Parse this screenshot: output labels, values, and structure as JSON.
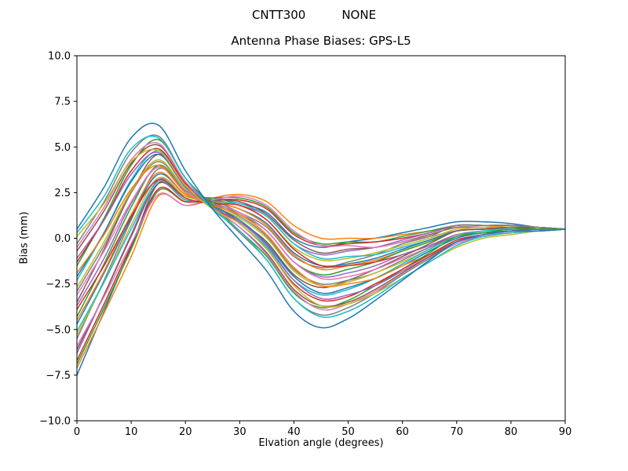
{
  "suptitle": {
    "left": "CNTT300",
    "right": "NONE"
  },
  "chart_data": {
    "type": "line",
    "title": "Antenna Phase Biases: GPS-L5",
    "xlabel": "Elvation angle (degrees)",
    "ylabel": "Bias (mm)",
    "xlim": [
      0,
      90
    ],
    "ylim": [
      -10,
      10
    ],
    "grid": false,
    "legend": "none",
    "x_ticks": [
      0,
      10,
      20,
      30,
      40,
      50,
      60,
      70,
      80,
      90
    ],
    "x_tick_labels": [
      "0",
      "10",
      "20",
      "30",
      "40",
      "50",
      "60",
      "70",
      "80",
      "90"
    ],
    "y_ticks": [
      10.0,
      7.5,
      5.0,
      2.5,
      0.0,
      -2.5,
      -5.0,
      -7.5,
      -10.0
    ],
    "y_tick_labels": [
      "10.0",
      "7.5",
      "5.0",
      "2.5",
      "0.0",
      "−2.5",
      "−5.0",
      "−7.5",
      "−10.0"
    ],
    "line_colors": [
      "#1f77b4",
      "#ff7f0e",
      "#2ca02c",
      "#d62728",
      "#9467bd",
      "#8c564b",
      "#e377c2",
      "#7f7f7f",
      "#bcbd22",
      "#17becf"
    ],
    "x": [
      0,
      5,
      10,
      15,
      20,
      25,
      30,
      35,
      40,
      45,
      50,
      55,
      60,
      65,
      70,
      75,
      80,
      85,
      90
    ],
    "series": [
      {
        "values": [
          -7.5,
          -4.0,
          -0.5,
          3.0,
          2.3,
          2.2,
          1.9,
          1.4,
          0.0,
          -0.5,
          -0.2,
          0.0,
          0.3,
          0.6,
          0.9,
          0.9,
          0.8,
          0.6,
          0.5
        ]
      },
      {
        "values": [
          -7.1,
          -4.1,
          -1.0,
          2.3,
          1.8,
          2.2,
          2.4,
          2.0,
          0.7,
          0.0,
          0.0,
          0.0,
          0.2,
          0.4,
          0.7,
          0.7,
          0.6,
          0.6,
          0.5
        ]
      },
      {
        "values": [
          -6.9,
          -3.8,
          -0.6,
          2.6,
          2.0,
          2.2,
          2.2,
          1.7,
          0.3,
          -0.3,
          -0.2,
          -0.2,
          0.1,
          0.4,
          0.7,
          0.7,
          0.7,
          0.6,
          0.5
        ]
      },
      {
        "values": [
          -6.7,
          -3.6,
          -0.4,
          2.7,
          2.0,
          2.1,
          2.1,
          1.6,
          0.2,
          -0.4,
          -0.3,
          -0.2,
          0.0,
          0.3,
          0.7,
          0.7,
          0.7,
          0.6,
          0.5
        ]
      },
      {
        "values": [
          -6.3,
          -3.1,
          0.2,
          3.2,
          2.3,
          2.1,
          1.8,
          1.2,
          -0.3,
          -0.9,
          -0.7,
          -0.5,
          -0.1,
          0.3,
          0.7,
          0.7,
          0.7,
          0.6,
          0.5
        ]
      },
      {
        "values": [
          -6.1,
          -3.1,
          0.1,
          3.0,
          2.1,
          2.1,
          2.0,
          1.3,
          -0.1,
          -0.8,
          -0.6,
          -0.5,
          -0.2,
          0.2,
          0.6,
          0.6,
          0.6,
          0.6,
          0.5
        ]
      },
      {
        "values": [
          -5.9,
          -3.2,
          -0.3,
          2.4,
          1.8,
          2.1,
          2.3,
          1.8,
          0.4,
          -0.4,
          -0.4,
          -0.5,
          -0.2,
          0.1,
          0.4,
          0.5,
          0.5,
          0.5,
          0.5
        ]
      },
      {
        "values": [
          -5.5,
          -2.3,
          1.0,
          3.8,
          2.6,
          2.1,
          1.4,
          0.6,
          -1.0,
          -1.6,
          -1.3,
          -0.9,
          -0.3,
          0.1,
          0.7,
          0.7,
          0.7,
          0.6,
          0.5
        ]
      },
      {
        "values": [
          -5.3,
          -2.4,
          0.7,
          3.3,
          2.3,
          2.0,
          1.8,
          1.0,
          -0.5,
          -1.2,
          -1.1,
          -0.8,
          -0.4,
          0.0,
          0.5,
          0.6,
          0.6,
          0.5,
          0.5
        ]
      },
      {
        "values": [
          -5.1,
          -2.4,
          0.5,
          3.1,
          2.1,
          2.0,
          1.9,
          1.2,
          -0.3,
          -1.1,
          -1.0,
          -0.9,
          -0.5,
          -0.1,
          0.4,
          0.5,
          0.5,
          0.5,
          0.5
        ]
      },
      {
        "values": [
          -4.7,
          -1.9,
          1.1,
          3.5,
          2.4,
          2.0,
          1.6,
          0.8,
          -0.8,
          -1.5,
          -1.4,
          -1.1,
          -0.6,
          -0.1,
          0.4,
          0.5,
          0.6,
          0.5,
          0.5
        ]
      },
      {
        "values": [
          -4.5,
          -1.8,
          1.3,
          3.6,
          2.4,
          2.0,
          1.6,
          0.7,
          -0.9,
          -1.7,
          -1.5,
          -1.2,
          -0.7,
          -0.2,
          0.4,
          0.5,
          0.6,
          0.5,
          0.5
        ]
      },
      {
        "values": [
          -4.3,
          -1.4,
          1.7,
          4.0,
          2.6,
          2.0,
          1.3,
          0.4,
          -1.3,
          -2.0,
          -1.7,
          -1.3,
          -0.7,
          -0.2,
          0.4,
          0.5,
          0.6,
          0.5,
          0.5
        ]
      },
      {
        "values": [
          -3.9,
          -1.5,
          1.2,
          3.2,
          2.2,
          1.9,
          1.8,
          1.0,
          -0.6,
          -1.5,
          -1.5,
          -1.3,
          -0.9,
          -0.4,
          0.1,
          0.3,
          0.4,
          0.5,
          0.5
        ]
      },
      {
        "values": [
          -3.7,
          -1.1,
          1.9,
          3.9,
          2.6,
          1.9,
          1.4,
          0.4,
          -1.3,
          -2.1,
          -1.9,
          -1.5,
          -0.9,
          -0.4,
          0.2,
          0.4,
          0.5,
          0.5,
          0.5
        ]
      },
      {
        "values": [
          -3.5,
          -0.6,
          2.5,
          4.6,
          3.0,
          1.9,
          0.9,
          -0.2,
          -2.0,
          -2.7,
          -2.3,
          -1.7,
          -1.0,
          -0.3,
          0.4,
          0.5,
          0.6,
          0.5,
          0.5
        ]
      },
      {
        "values": [
          -3.1,
          -0.7,
          2.0,
          3.9,
          2.5,
          1.9,
          1.4,
          0.4,
          -1.3,
          -2.2,
          -2.1,
          -1.7,
          -1.1,
          -0.5,
          0.1,
          0.3,
          0.4,
          0.5,
          0.5
        ]
      },
      {
        "values": [
          -2.9,
          -0.4,
          2.5,
          4.2,
          2.7,
          1.9,
          1.2,
          0.1,
          -1.7,
          -2.5,
          -2.3,
          -1.9,
          -1.2,
          -0.5,
          0.1,
          0.3,
          0.5,
          0.5,
          0.5
        ]
      },
      {
        "values": [
          -2.7,
          -0.2,
          2.6,
          4.3,
          2.7,
          1.8,
          1.1,
          0.0,
          -1.8,
          -2.6,
          -2.4,
          -1.9,
          -1.3,
          -0.6,
          0.1,
          0.3,
          0.5,
          0.5,
          0.5
        ]
      },
      {
        "values": [
          -2.3,
          0.3,
          3.2,
          4.8,
          3.0,
          1.8,
          0.8,
          -0.5,
          -2.3,
          -3.1,
          -2.8,
          -2.2,
          -1.4,
          -0.6,
          0.1,
          0.4,
          0.5,
          0.5,
          0.5
        ]
      },
      {
        "values": [
          -2.1,
          0.3,
          3.1,
          4.6,
          2.8,
          1.8,
          1.0,
          -0.3,
          -2.1,
          -3.0,
          -2.7,
          -2.2,
          -1.5,
          -0.7,
          0.0,
          0.3,
          0.4,
          0.5,
          0.5
        ]
      },
      {
        "values": [
          -1.9,
          0.2,
          2.7,
          4.0,
          2.5,
          1.8,
          1.3,
          0.2,
          -1.6,
          -2.6,
          -2.5,
          -2.2,
          -1.5,
          -0.9,
          -0.2,
          0.1,
          0.3,
          0.4,
          0.5
        ]
      },
      {
        "values": [
          -1.5,
          1.1,
          4.0,
          5.4,
          3.3,
          1.8,
          0.4,
          -1.0,
          -3.0,
          -3.8,
          -3.4,
          -2.6,
          -1.7,
          -0.8,
          0.1,
          0.3,
          0.5,
          0.5,
          0.5
        ]
      },
      {
        "values": [
          -1.3,
          1.0,
          3.7,
          4.9,
          3.0,
          1.7,
          0.8,
          -0.6,
          -2.5,
          -3.4,
          -3.2,
          -2.5,
          -1.7,
          -0.9,
          -0.1,
          0.2,
          0.4,
          0.4,
          0.5
        ]
      },
      {
        "values": [
          -1.1,
          1.0,
          3.5,
          4.7,
          2.8,
          1.7,
          0.9,
          -0.4,
          -2.3,
          -3.3,
          -3.1,
          -2.6,
          -1.8,
          -1.0,
          -0.2,
          0.1,
          0.3,
          0.4,
          0.5
        ]
      },
      {
        "values": [
          -0.7,
          1.5,
          4.1,
          5.1,
          3.1,
          1.7,
          0.6,
          -0.8,
          -2.8,
          -3.7,
          -3.5,
          -2.8,
          -1.9,
          -1.0,
          -0.2,
          0.2,
          0.4,
          0.4,
          0.5
        ]
      },
      {
        "values": [
          -0.5,
          1.7,
          4.3,
          5.2,
          3.1,
          1.7,
          0.6,
          -0.9,
          -2.9,
          -3.9,
          -3.6,
          -2.9,
          -2.0,
          -1.1,
          -0.3,
          0.1,
          0.4,
          0.4,
          0.5
        ]
      },
      {
        "values": [
          -0.3,
          2.0,
          4.7,
          5.6,
          3.3,
          1.7,
          0.3,
          -1.2,
          -3.3,
          -4.2,
          -3.8,
          -3.0,
          -2.0,
          -1.1,
          -0.2,
          0.2,
          0.4,
          0.4,
          0.5
        ]
      },
      {
        "values": [
          0.1,
          1.9,
          4.2,
          4.8,
          2.9,
          1.6,
          0.8,
          -0.6,
          -2.6,
          -3.7,
          -3.6,
          -3.0,
          -2.2,
          -1.3,
          -0.5,
          0.0,
          0.2,
          0.4,
          0.5
        ]
      },
      {
        "values": [
          0.3,
          2.3,
          4.9,
          5.5,
          3.3,
          1.6,
          0.4,
          -1.2,
          -3.3,
          -4.3,
          -4.0,
          -3.2,
          -2.2,
          -1.3,
          -0.4,
          0.1,
          0.3,
          0.4,
          0.5
        ]
      },
      {
        "values": [
          0.5,
          2.8,
          5.5,
          6.2,
          3.7,
          1.6,
          -0.1,
          -1.8,
          -4.0,
          -4.9,
          -4.4,
          -3.4,
          -2.3,
          -1.2,
          -0.2,
          0.2,
          0.4,
          0.4,
          0.5
        ]
      }
    ]
  }
}
